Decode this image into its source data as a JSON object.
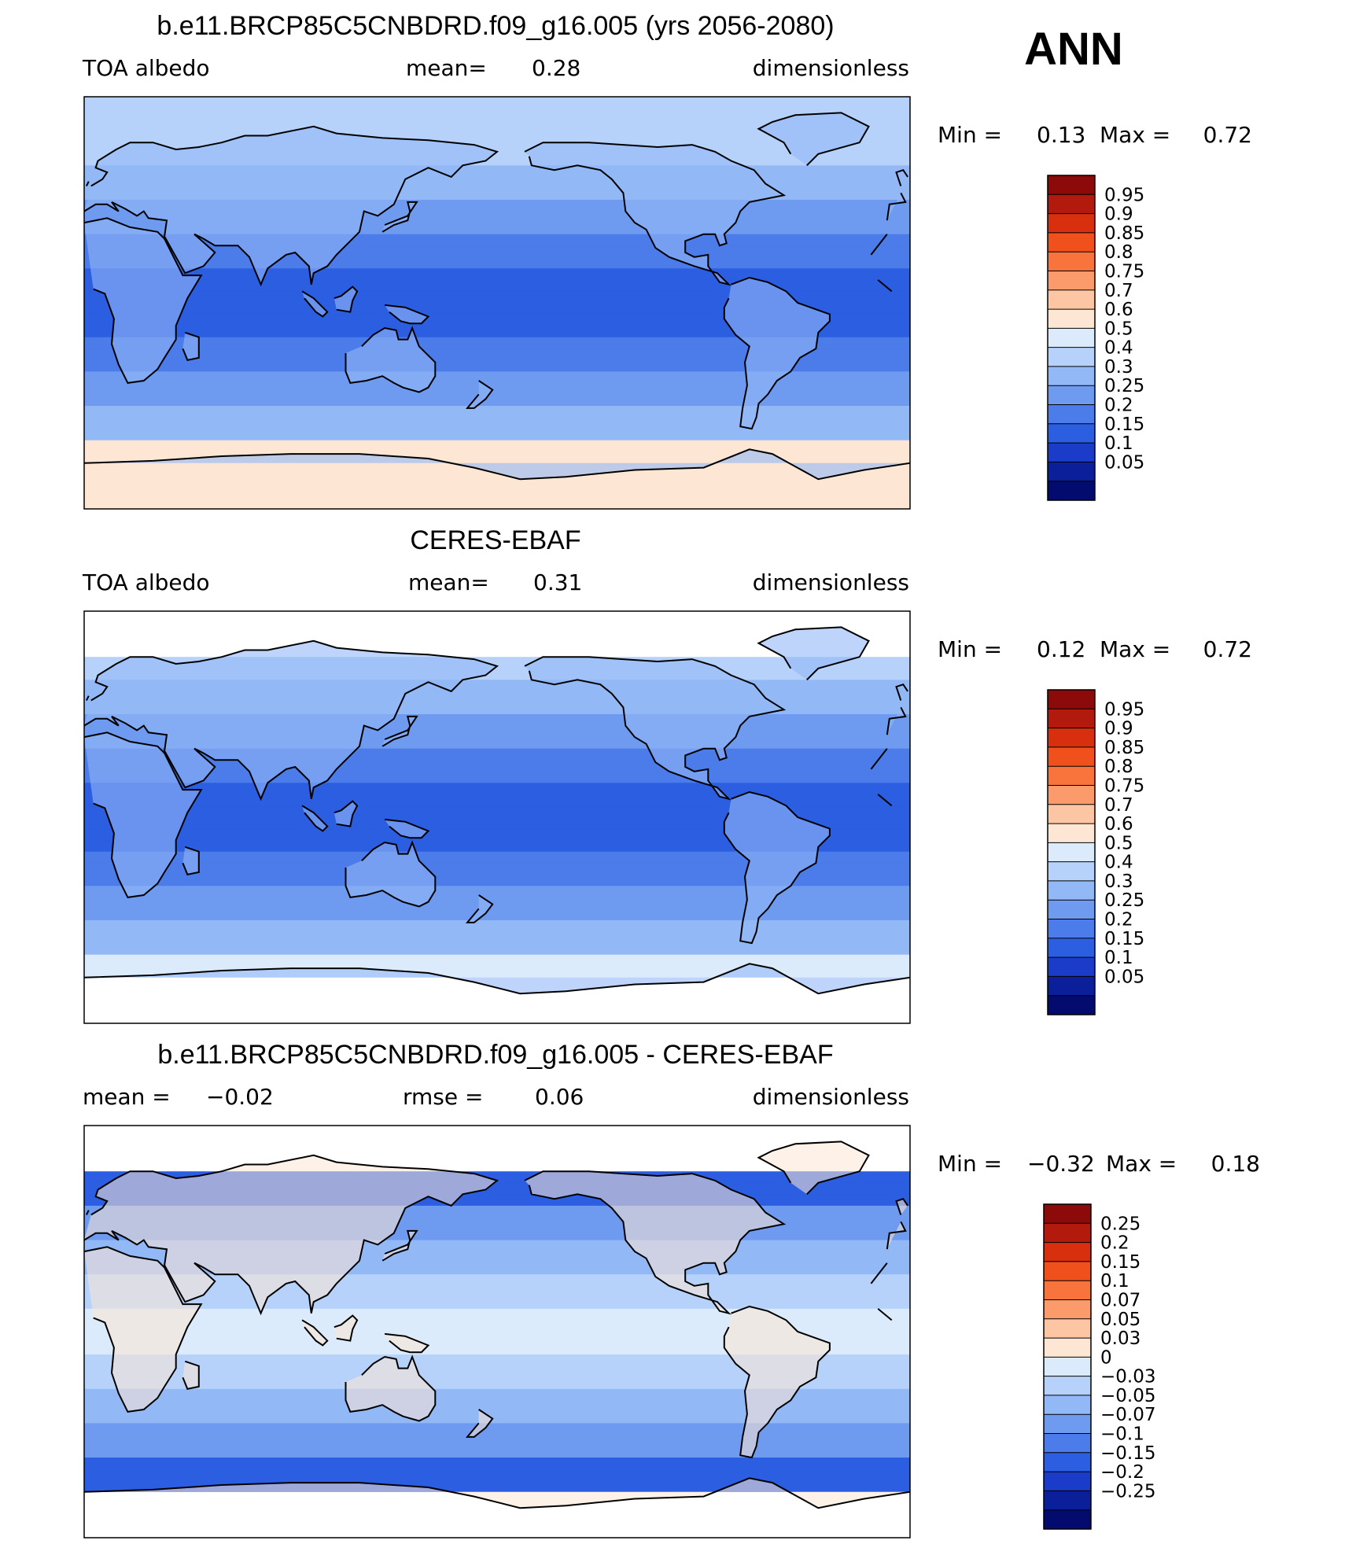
{
  "season": "ANN",
  "chart_data": [
    {
      "type": "heatmap",
      "title": "b.e11.BRCP85C5CNBDRD.f09_g16.005 (yrs 2056-2080)",
      "left_label": "TOA albedo",
      "mean_label": "mean=",
      "mean_value": "0.28",
      "units": "dimensionless",
      "min_label": "Min =",
      "min_value": "0.13",
      "max_label": "Max =",
      "max_value": "0.72",
      "levels": [
        "0.95",
        "0.9",
        "0.85",
        "0.8",
        "0.75",
        "0.7",
        "0.6",
        "0.5",
        "0.4",
        "0.3",
        "0.25",
        "0.2",
        "0.15",
        "0.1",
        "0.05"
      ],
      "colors": [
        "#8c0a0a",
        "#b31a0e",
        "#d8300f",
        "#f0501c",
        "#f8743c",
        "#fb9a6a",
        "#fcc6a4",
        "#fde6d3",
        "#dcebfb",
        "#b7d2fa",
        "#92b8f6",
        "#6e9bf0",
        "#4b7ce9",
        "#2b5ee0",
        "#1a3cc8",
        "#0c1f9a",
        "#040b6e"
      ],
      "field": "model"
    },
    {
      "type": "heatmap",
      "title": "CERES-EBAF",
      "left_label": "TOA albedo",
      "mean_label": "mean=",
      "mean_value": "0.31",
      "units": "dimensionless",
      "min_label": "Min =",
      "min_value": "0.12",
      "max_label": "Max =",
      "max_value": "0.72",
      "levels": [
        "0.95",
        "0.9",
        "0.85",
        "0.8",
        "0.75",
        "0.7",
        "0.6",
        "0.5",
        "0.4",
        "0.3",
        "0.25",
        "0.2",
        "0.15",
        "0.1",
        "0.05"
      ],
      "colors": [
        "#8c0a0a",
        "#b31a0e",
        "#d8300f",
        "#f0501c",
        "#f8743c",
        "#fb9a6a",
        "#fcc6a4",
        "#fde6d3",
        "#dcebfb",
        "#b7d2fa",
        "#92b8f6",
        "#6e9bf0",
        "#4b7ce9",
        "#2b5ee0",
        "#1a3cc8",
        "#0c1f9a",
        "#040b6e"
      ],
      "field": "obs"
    },
    {
      "type": "heatmap",
      "title": "b.e11.BRCP85C5CNBDRD.f09_g16.005 - CERES-EBAF",
      "left_label": "mean =",
      "left_value": "−0.02",
      "mean_label": "rmse =",
      "mean_value": "0.06",
      "units": "dimensionless",
      "min_label": "Min =",
      "min_value": "−0.32",
      "max_label": "Max =",
      "max_value": "0.18",
      "levels": [
        "0.25",
        "0.2",
        "0.15",
        "0.1",
        "0.07",
        "0.05",
        "0.03",
        "0",
        "−0.03",
        "−0.05",
        "−0.07",
        "−0.1",
        "−0.15",
        "−0.2",
        "−0.25"
      ],
      "colors": [
        "#8c0a0a",
        "#b31a0e",
        "#d8300f",
        "#f0501c",
        "#f8743c",
        "#fb9a6a",
        "#fcc6a4",
        "#fde6d3",
        "#dcebfb",
        "#b7d2fa",
        "#92b8f6",
        "#6e9bf0",
        "#4b7ce9",
        "#2b5ee0",
        "#1a3cc8",
        "#0c1f9a",
        "#040b6e"
      ],
      "field": "diff"
    }
  ]
}
